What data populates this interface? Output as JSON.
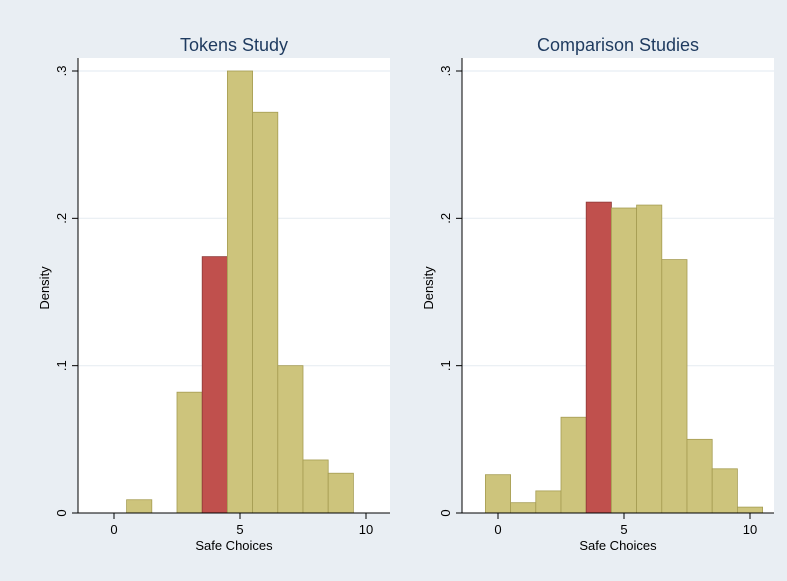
{
  "figure": {
    "background": "#e9eef3",
    "panel_background": "#ffffff",
    "gridline_color": "#e8eef3",
    "bar_fill": "#cdc47c",
    "bar_stroke": "#a59c52",
    "highlight_fill": "#c0504d",
    "highlight_stroke": "#8e3a38"
  },
  "chart_data": [
    {
      "type": "bar",
      "title": "Tokens Study",
      "xlabel": "Safe Choices",
      "ylabel": "Density",
      "xlim": [
        -1.5,
        11
      ],
      "ylim": [
        0,
        0.3
      ],
      "xticks": [
        0,
        5,
        10
      ],
      "xtick_labels": [
        "0",
        "5",
        "10"
      ],
      "yticks": [
        0,
        0.1,
        0.2,
        0.3
      ],
      "ytick_labels": [
        "0",
        ".1",
        ".2",
        ".3"
      ],
      "grid": true,
      "bin_width": 1,
      "bins": [
        {
          "x": 1,
          "value": 0.009,
          "highlight": false
        },
        {
          "x": 3,
          "value": 0.082,
          "highlight": false
        },
        {
          "x": 4,
          "value": 0.174,
          "highlight": true
        },
        {
          "x": 5,
          "value": 0.3,
          "highlight": false
        },
        {
          "x": 6,
          "value": 0.272,
          "highlight": false
        },
        {
          "x": 7,
          "value": 0.1,
          "highlight": false
        },
        {
          "x": 8,
          "value": 0.036,
          "highlight": false
        },
        {
          "x": 9,
          "value": 0.027,
          "highlight": false
        }
      ]
    },
    {
      "type": "bar",
      "title": "Comparison Studies",
      "xlabel": "Safe Choices",
      "ylabel": "Density",
      "xlim": [
        -1.5,
        11
      ],
      "ylim": [
        0,
        0.3
      ],
      "xticks": [
        0,
        5,
        10
      ],
      "xtick_labels": [
        "0",
        "5",
        "10"
      ],
      "yticks": [
        0,
        0.1,
        0.2,
        0.3
      ],
      "ytick_labels": [
        "0",
        ".1",
        ".2",
        ".3"
      ],
      "grid": true,
      "bin_width": 1,
      "bins": [
        {
          "x": 0,
          "value": 0.026,
          "highlight": false
        },
        {
          "x": 1,
          "value": 0.007,
          "highlight": false
        },
        {
          "x": 2,
          "value": 0.015,
          "highlight": false
        },
        {
          "x": 3,
          "value": 0.065,
          "highlight": false
        },
        {
          "x": 4,
          "value": 0.211,
          "highlight": true
        },
        {
          "x": 5,
          "value": 0.207,
          "highlight": false
        },
        {
          "x": 6,
          "value": 0.209,
          "highlight": false
        },
        {
          "x": 7,
          "value": 0.172,
          "highlight": false
        },
        {
          "x": 8,
          "value": 0.05,
          "highlight": false
        },
        {
          "x": 9,
          "value": 0.03,
          "highlight": false
        },
        {
          "x": 10,
          "value": 0.004,
          "highlight": false
        }
      ]
    }
  ]
}
